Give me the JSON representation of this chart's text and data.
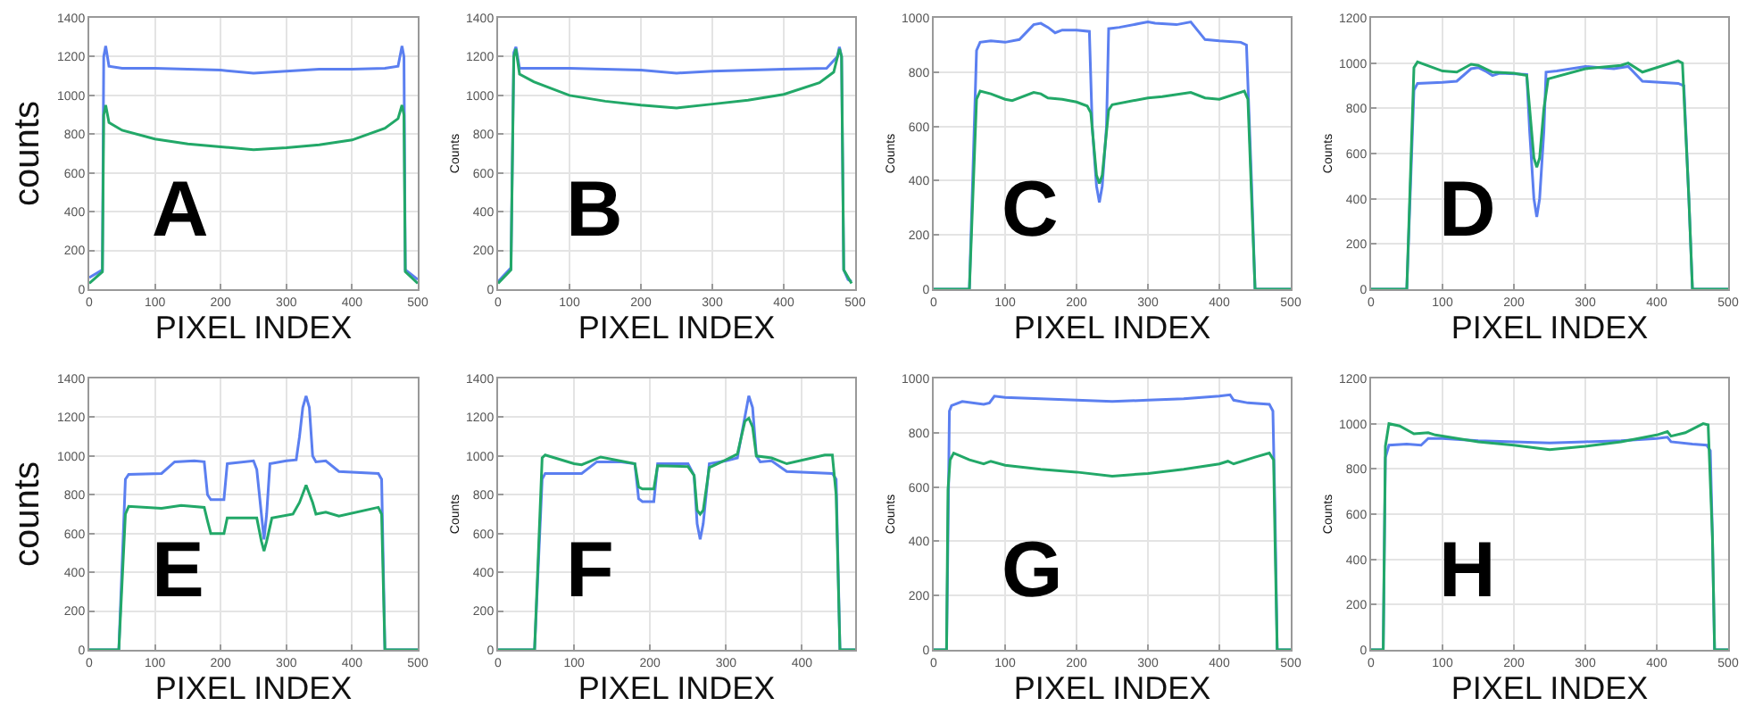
{
  "chart_data": [
    {
      "type": "line",
      "xlabel": "PIXEL INDEX",
      "ylabel": "counts",
      "annotations": [
        "A"
      ],
      "xlim": [
        0,
        500
      ],
      "xticks": [
        0,
        100,
        200,
        300,
        400,
        500
      ],
      "ylim": [
        0,
        1400
      ],
      "yticks": [
        0,
        200,
        400,
        600,
        800,
        1000,
        1200,
        1400
      ],
      "grid": true,
      "series": [
        {
          "color": "#5b7ff0",
          "x": [
            0,
            20,
            22,
            25,
            30,
            50,
            100,
            150,
            200,
            250,
            300,
            350,
            400,
            450,
            470,
            476,
            479,
            481,
            500
          ],
          "values": [
            60,
            100,
            1200,
            1255,
            1150,
            1140,
            1140,
            1135,
            1130,
            1115,
            1125,
            1135,
            1135,
            1140,
            1150,
            1255,
            1200,
            100,
            50
          ]
        },
        {
          "color": "#22a868",
          "x": [
            0,
            20,
            22,
            25,
            30,
            50,
            100,
            150,
            200,
            250,
            300,
            350,
            400,
            450,
            470,
            476,
            479,
            481,
            500
          ],
          "values": [
            30,
            90,
            900,
            950,
            860,
            820,
            775,
            750,
            735,
            720,
            730,
            745,
            770,
            830,
            880,
            950,
            900,
            90,
            30
          ]
        }
      ]
    },
    {
      "type": "line",
      "xlabel": "PIXEL INDEX",
      "ylabel": "Counts",
      "annotations": [
        "B"
      ],
      "xlim": [
        0,
        500
      ],
      "xticks": [
        0,
        100,
        200,
        300,
        400,
        500
      ],
      "ylim": [
        0,
        1400
      ],
      "yticks": [
        0,
        200,
        400,
        600,
        800,
        1000,
        1200,
        1400
      ],
      "grid": true,
      "series": [
        {
          "color": "#5b7ff0",
          "x": [
            0,
            18,
            22,
            25,
            30,
            100,
            200,
            250,
            300,
            400,
            460,
            475,
            478,
            481,
            484,
            490,
            495
          ],
          "values": [
            40,
            110,
            1220,
            1250,
            1140,
            1140,
            1130,
            1115,
            1125,
            1135,
            1140,
            1200,
            1250,
            1200,
            100,
            50,
            40
          ]
        },
        {
          "color": "#22a868",
          "x": [
            0,
            18,
            22,
            25,
            30,
            50,
            100,
            150,
            200,
            250,
            300,
            350,
            400,
            450,
            470,
            478,
            481,
            484,
            495
          ],
          "values": [
            30,
            100,
            1200,
            1240,
            1110,
            1070,
            1000,
            970,
            950,
            935,
            955,
            975,
            1005,
            1065,
            1120,
            1240,
            1200,
            100,
            30
          ]
        }
      ]
    },
    {
      "type": "line",
      "xlabel": "PIXEL INDEX",
      "ylabel": "Counts",
      "annotations": [
        "C"
      ],
      "xlim": [
        0,
        500
      ],
      "xticks": [
        0,
        100,
        200,
        300,
        400,
        500
      ],
      "ylim": [
        0,
        1000
      ],
      "yticks": [
        0,
        200,
        400,
        600,
        800,
        1000
      ],
      "grid": true,
      "series": [
        {
          "color": "#5b7ff0",
          "x": [
            0,
            50,
            60,
            65,
            80,
            100,
            120,
            140,
            150,
            160,
            170,
            180,
            200,
            218,
            222,
            228,
            232,
            236,
            242,
            245,
            260,
            290,
            300,
            310,
            340,
            360,
            380,
            400,
            430,
            438,
            445,
            450,
            500
          ],
          "values": [
            0,
            0,
            880,
            910,
            915,
            910,
            920,
            975,
            980,
            965,
            945,
            955,
            955,
            950,
            600,
            380,
            320,
            380,
            600,
            960,
            965,
            980,
            985,
            980,
            975,
            985,
            920,
            915,
            910,
            900,
            400,
            0,
            0
          ]
        },
        {
          "color": "#22a868",
          "x": [
            0,
            50,
            60,
            65,
            80,
            100,
            110,
            140,
            150,
            160,
            180,
            200,
            215,
            220,
            228,
            232,
            236,
            245,
            250,
            300,
            320,
            360,
            380,
            400,
            435,
            440,
            450,
            500
          ],
          "values": [
            0,
            0,
            700,
            730,
            720,
            700,
            695,
            725,
            720,
            705,
            700,
            690,
            675,
            650,
            420,
            390,
            420,
            660,
            680,
            705,
            710,
            725,
            705,
            700,
            730,
            700,
            0,
            0
          ]
        }
      ]
    },
    {
      "type": "line",
      "xlabel": "PIXEL INDEX",
      "ylabel": "Counts",
      "annotations": [
        "D"
      ],
      "xlim": [
        0,
        500
      ],
      "xticks": [
        0,
        100,
        200,
        300,
        400,
        500
      ],
      "ylim": [
        0,
        1200
      ],
      "yticks": [
        0,
        200,
        400,
        600,
        800,
        1000,
        1200
      ],
      "grid": true,
      "series": [
        {
          "color": "#5b7ff0",
          "x": [
            0,
            50,
            60,
            65,
            100,
            120,
            140,
            150,
            160,
            170,
            180,
            218,
            222,
            228,
            232,
            236,
            242,
            245,
            260,
            300,
            320,
            340,
            360,
            380,
            430,
            438,
            445,
            450,
            500
          ],
          "values": [
            0,
            0,
            880,
            910,
            915,
            920,
            975,
            980,
            965,
            945,
            955,
            950,
            700,
            400,
            320,
            400,
            700,
            960,
            965,
            985,
            980,
            975,
            985,
            920,
            910,
            900,
            400,
            0,
            0
          ]
        },
        {
          "color": "#22a868",
          "x": [
            0,
            50,
            60,
            65,
            100,
            120,
            140,
            150,
            170,
            200,
            218,
            222,
            228,
            232,
            236,
            242,
            248,
            300,
            350,
            360,
            380,
            430,
            436,
            445,
            450,
            500
          ],
          "values": [
            0,
            0,
            980,
            1005,
            965,
            960,
            995,
            990,
            960,
            955,
            945,
            800,
            580,
            540,
            580,
            800,
            930,
            975,
            990,
            1000,
            960,
            1010,
            1000,
            400,
            0,
            0
          ]
        }
      ]
    },
    {
      "type": "line",
      "xlabel": "PIXEL INDEX",
      "ylabel": "counts",
      "annotations": [
        "E"
      ],
      "xlim": [
        0,
        500
      ],
      "xticks": [
        0,
        100,
        200,
        300,
        400,
        500
      ],
      "ylim": [
        0,
        1400
      ],
      "yticks": [
        0,
        200,
        400,
        600,
        800,
        1000,
        1200,
        1400
      ],
      "grid": true,
      "series": [
        {
          "color": "#5b7ff0",
          "x": [
            0,
            45,
            55,
            60,
            110,
            130,
            160,
            175,
            180,
            185,
            205,
            210,
            250,
            255,
            262,
            266,
            270,
            275,
            300,
            315,
            320,
            325,
            330,
            335,
            340,
            345,
            360,
            380,
            440,
            445,
            450,
            500
          ],
          "values": [
            0,
            0,
            880,
            905,
            910,
            970,
            975,
            970,
            800,
            775,
            775,
            960,
            975,
            930,
            700,
            570,
            700,
            960,
            975,
            980,
            1100,
            1250,
            1310,
            1250,
            1000,
            970,
            975,
            920,
            910,
            880,
            0,
            0
          ]
        },
        {
          "color": "#22a868",
          "x": [
            0,
            45,
            55,
            60,
            110,
            140,
            175,
            180,
            185,
            205,
            210,
            255,
            262,
            266,
            270,
            278,
            310,
            320,
            330,
            340,
            345,
            360,
            380,
            440,
            445,
            450,
            500
          ],
          "values": [
            0,
            0,
            700,
            740,
            730,
            745,
            735,
            665,
            600,
            600,
            680,
            680,
            560,
            510,
            560,
            680,
            700,
            760,
            850,
            760,
            700,
            710,
            690,
            735,
            700,
            0,
            0
          ]
        }
      ]
    },
    {
      "type": "line",
      "xlabel": "PIXEL INDEX",
      "ylabel": "Counts",
      "annotations": [
        "F"
      ],
      "xlim": [
        0,
        470
      ],
      "xticks": [
        0,
        100,
        200,
        300,
        400
      ],
      "ylim": [
        0,
        1400
      ],
      "yticks": [
        0,
        200,
        400,
        600,
        800,
        1000,
        1200,
        1400
      ],
      "grid": true,
      "series": [
        {
          "color": "#5b7ff0",
          "x": [
            0,
            48,
            58,
            62,
            110,
            130,
            160,
            180,
            185,
            190,
            205,
            210,
            250,
            258,
            262,
            266,
            270,
            278,
            300,
            315,
            320,
            330,
            335,
            340,
            345,
            360,
            380,
            440,
            445,
            450,
            470
          ],
          "values": [
            0,
            0,
            880,
            910,
            910,
            970,
            970,
            960,
            780,
            765,
            765,
            960,
            960,
            900,
            650,
            570,
            650,
            960,
            975,
            990,
            1100,
            1310,
            1250,
            1000,
            970,
            975,
            920,
            910,
            880,
            0,
            0
          ]
        },
        {
          "color": "#22a868",
          "x": [
            0,
            48,
            58,
            62,
            100,
            110,
            135,
            180,
            185,
            190,
            205,
            210,
            250,
            258,
            262,
            266,
            270,
            278,
            300,
            315,
            325,
            330,
            335,
            340,
            360,
            380,
            430,
            440,
            445,
            450,
            470
          ],
          "values": [
            0,
            0,
            990,
            1005,
            960,
            955,
            995,
            960,
            840,
            830,
            830,
            950,
            945,
            900,
            720,
            700,
            720,
            940,
            980,
            1010,
            1180,
            1195,
            1150,
            1000,
            990,
            960,
            1005,
            1005,
            800,
            0,
            0
          ]
        }
      ]
    },
    {
      "type": "line",
      "xlabel": "PIXEL INDEX",
      "ylabel": "Counts",
      "annotations": [
        "G"
      ],
      "xlim": [
        0,
        500
      ],
      "xticks": [
        0,
        100,
        200,
        300,
        400,
        500
      ],
      "ylim": [
        0,
        1000
      ],
      "yticks": [
        0,
        200,
        400,
        600,
        800,
        1000
      ],
      "grid": true,
      "series": [
        {
          "color": "#5b7ff0",
          "x": [
            0,
            18,
            20,
            22,
            25,
            40,
            70,
            78,
            85,
            100,
            150,
            200,
            250,
            300,
            350,
            400,
            415,
            420,
            440,
            470,
            475,
            478,
            481,
            500
          ],
          "values": [
            0,
            0,
            420,
            880,
            900,
            915,
            905,
            910,
            935,
            930,
            925,
            920,
            915,
            920,
            925,
            935,
            940,
            920,
            910,
            905,
            880,
            500,
            0,
            0
          ]
        },
        {
          "color": "#22a868",
          "x": [
            0,
            18,
            20,
            23,
            28,
            50,
            70,
            80,
            100,
            150,
            200,
            250,
            300,
            350,
            400,
            412,
            420,
            450,
            470,
            476,
            478,
            481,
            500
          ],
          "values": [
            0,
            0,
            590,
            700,
            725,
            700,
            685,
            695,
            680,
            665,
            655,
            640,
            650,
            665,
            685,
            695,
            685,
            710,
            725,
            700,
            400,
            0,
            0
          ]
        }
      ]
    },
    {
      "type": "line",
      "xlabel": "PIXEL INDEX",
      "ylabel": "Counts",
      "annotations": [
        "H"
      ],
      "xlim": [
        0,
        500
      ],
      "xticks": [
        0,
        100,
        200,
        300,
        400,
        500
      ],
      "ylim": [
        0,
        1200
      ],
      "yticks": [
        0,
        200,
        400,
        600,
        800,
        1000,
        1200
      ],
      "grid": true,
      "series": [
        {
          "color": "#5b7ff0",
          "x": [
            0,
            17,
            20,
            25,
            50,
            70,
            80,
            100,
            150,
            200,
            250,
            300,
            350,
            400,
            415,
            420,
            450,
            470,
            475,
            478,
            481,
            500
          ],
          "values": [
            0,
            0,
            850,
            905,
            910,
            905,
            935,
            935,
            925,
            920,
            915,
            920,
            925,
            935,
            940,
            920,
            910,
            905,
            880,
            500,
            0,
            0
          ]
        },
        {
          "color": "#22a868",
          "x": [
            0,
            17,
            20,
            25,
            40,
            60,
            80,
            90,
            150,
            200,
            250,
            300,
            350,
            400,
            415,
            420,
            440,
            465,
            472,
            478,
            481,
            500
          ],
          "values": [
            0,
            0,
            900,
            1000,
            990,
            955,
            960,
            950,
            920,
            905,
            885,
            900,
            920,
            950,
            965,
            945,
            960,
            1000,
            995,
            500,
            0,
            0
          ]
        }
      ]
    }
  ]
}
